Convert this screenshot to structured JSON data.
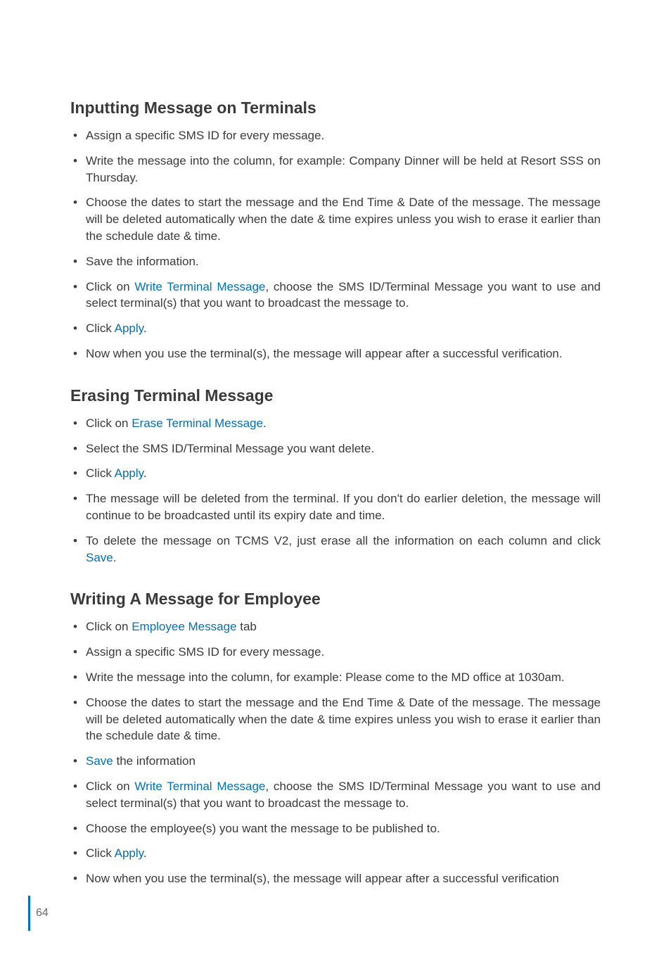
{
  "colors": {
    "link": "#0070b8",
    "text": "#3a3a3a",
    "page_num": "#6a6a6a",
    "footer_bar": "#0070b8",
    "background": "#ffffff"
  },
  "typography": {
    "heading_fontsize": 23,
    "body_fontsize": 17,
    "heading_weight": 700
  },
  "sections": [
    {
      "heading": "Inputting Message on Terminals",
      "items": [
        {
          "parts": [
            {
              "t": "Assign a specific SMS ID for every message."
            }
          ]
        },
        {
          "parts": [
            {
              "t": "Write the message into the column, for example: Company Dinner will be held at Resort SSS on Thursday."
            }
          ]
        },
        {
          "parts": [
            {
              "t": "Choose the dates to start the message and the End Time & Date of the message. The message will be deleted automatically when the date & time expires unless you wish to erase it earlier than the schedule date & time."
            }
          ]
        },
        {
          "parts": [
            {
              "t": "Save the information."
            }
          ]
        },
        {
          "parts": [
            {
              "t": "Click on "
            },
            {
              "t": "Write Terminal Message",
              "link": true
            },
            {
              "t": ", choose the SMS ID/Terminal Message you want to use and select terminal(s) that you want to broadcast the message to."
            }
          ]
        },
        {
          "parts": [
            {
              "t": "Click "
            },
            {
              "t": "Apply",
              "link": true
            },
            {
              "t": "."
            }
          ]
        },
        {
          "parts": [
            {
              "t": "Now when you use the terminal(s), the message will appear after a successful verification."
            }
          ]
        }
      ]
    },
    {
      "heading": "Erasing Terminal Message",
      "items": [
        {
          "parts": [
            {
              "t": "Click on "
            },
            {
              "t": "Erase Terminal Message",
              "link": true
            },
            {
              "t": "."
            }
          ]
        },
        {
          "parts": [
            {
              "t": "Select the SMS ID/Terminal Message you want delete."
            }
          ]
        },
        {
          "parts": [
            {
              "t": "Click "
            },
            {
              "t": "Apply",
              "link": true
            },
            {
              "t": "."
            }
          ]
        },
        {
          "parts": [
            {
              "t": "The message will be deleted from the terminal. If you don't do earlier deletion, the message will continue to be broadcasted until its expiry date and time."
            }
          ]
        },
        {
          "parts": [
            {
              "t": "To delete the message on TCMS V2, just erase all the information on each column and click "
            },
            {
              "t": "Save",
              "link": true
            },
            {
              "t": "."
            }
          ]
        }
      ]
    },
    {
      "heading": "Writing A Message for Employee",
      "items": [
        {
          "parts": [
            {
              "t": "Click on "
            },
            {
              "t": "Employee Message",
              "link": true
            },
            {
              "t": " tab"
            }
          ]
        },
        {
          "parts": [
            {
              "t": "Assign a specific SMS ID for every message."
            }
          ]
        },
        {
          "parts": [
            {
              "t": "Write the message into the column, for example: Please come to the MD office at 1030am."
            }
          ]
        },
        {
          "parts": [
            {
              "t": "Choose the dates to start the message and the End Time & Date of the message. The message will be deleted automatically when the date & time expires unless you wish to erase it earlier than the schedule date & time."
            }
          ]
        },
        {
          "parts": [
            {
              "t": "Save",
              "link": true
            },
            {
              "t": " the information"
            }
          ]
        },
        {
          "parts": [
            {
              "t": "Click on "
            },
            {
              "t": "Write Terminal Message",
              "link": true
            },
            {
              "t": ", choose the SMS ID/Terminal Message you want to use and select terminal(s) that you want to broadcast the message to."
            }
          ]
        },
        {
          "parts": [
            {
              "t": "Choose the employee(s) you want the message to be published to."
            }
          ]
        },
        {
          "parts": [
            {
              "t": "Click "
            },
            {
              "t": "Apply",
              "link": true
            },
            {
              "t": "."
            }
          ]
        },
        {
          "parts": [
            {
              "t": "Now when you use the terminal(s), the message will appear after a successful verification"
            }
          ]
        }
      ]
    }
  ],
  "page_number": "64"
}
